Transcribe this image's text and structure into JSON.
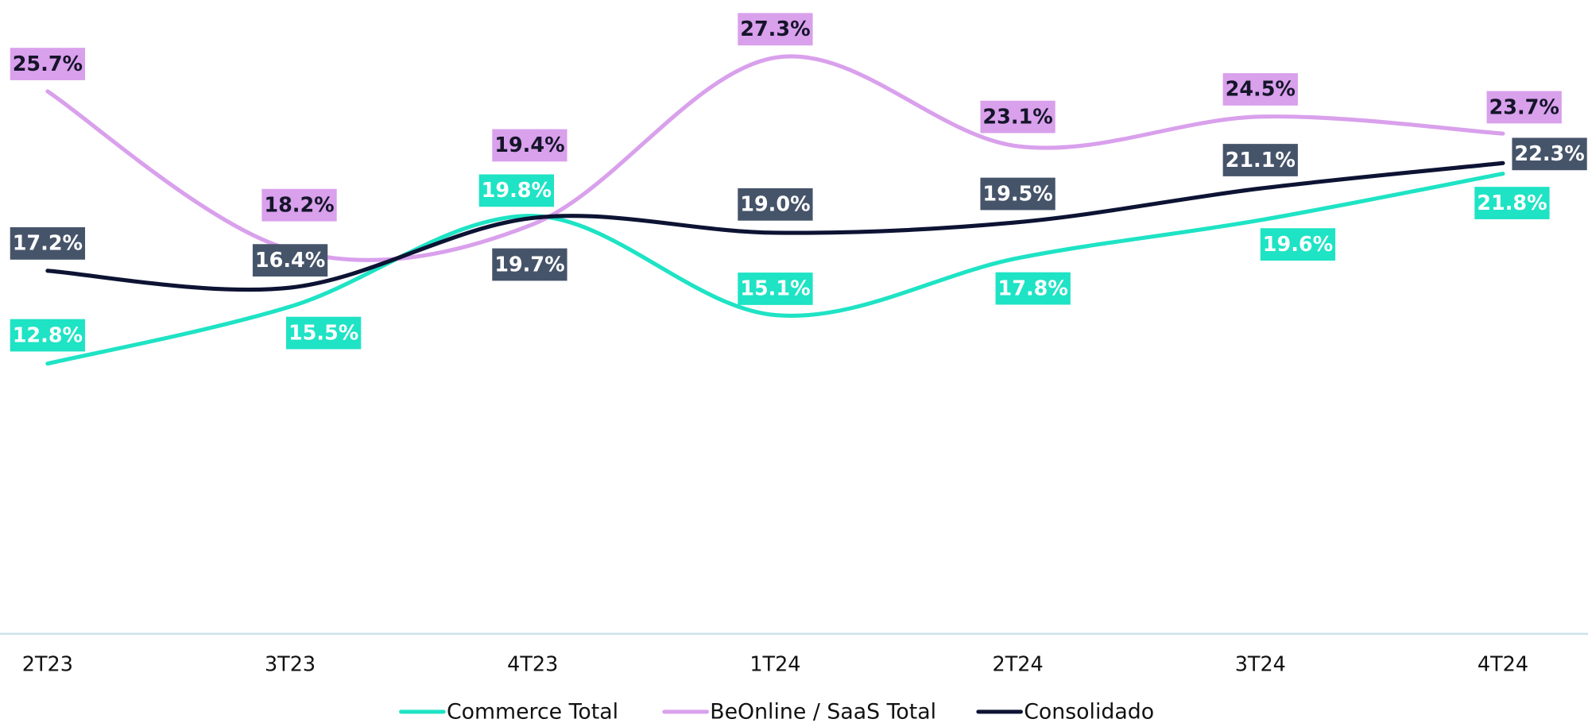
{
  "chart_data": {
    "type": "line",
    "categories": [
      "2T23",
      "3T23",
      "4T23",
      "1T24",
      "2T24",
      "3T24",
      "4T24"
    ],
    "ylim": [
      0,
      30
    ],
    "series": [
      {
        "name": "Commerce Total",
        "color": "#1ee3c4",
        "values": [
          12.8,
          15.5,
          19.8,
          15.1,
          17.8,
          19.6,
          21.8
        ],
        "value_labels": [
          "12.8%",
          "15.5%",
          "19.8%",
          "15.1%",
          "17.8%",
          "19.6%",
          "21.8%"
        ]
      },
      {
        "name": "BeOnline / SaaS Total",
        "color": "#d9a0ec",
        "values": [
          25.7,
          18.2,
          19.4,
          27.3,
          23.1,
          24.5,
          23.7
        ],
        "value_labels": [
          "25.7%",
          "18.2%",
          "19.4%",
          "27.3%",
          "23.1%",
          "24.5%",
          "23.7%"
        ]
      },
      {
        "name": "Consolidado",
        "color": "#0d1333",
        "values": [
          17.2,
          16.4,
          19.7,
          19.0,
          19.5,
          21.1,
          22.3
        ],
        "value_labels": [
          "17.2%",
          "16.4%",
          "19.7%",
          "19.0%",
          "19.5%",
          "21.1%",
          "22.3%"
        ]
      }
    ]
  }
}
